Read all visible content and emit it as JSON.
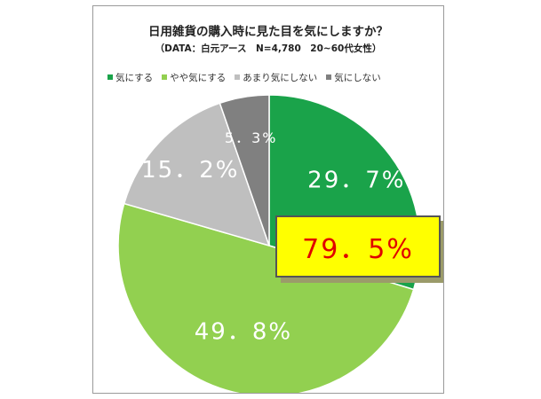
{
  "chart_data": {
    "type": "pie",
    "title": "日用雑貨の購入時に見た目を気にしますか？",
    "subtitle": "（DATA：白元アース　N=4,780　20~60代女性）",
    "categories": [
      "気にする",
      "やや気にする",
      "あまり気にしない",
      "気にしない"
    ],
    "values": [
      29.7,
      49.8,
      15.2,
      5.3
    ],
    "value_labels": [
      "29．7%",
      "49．8%",
      "15．2%",
      "5．3%"
    ],
    "colors": [
      "#1aa34a",
      "#92d050",
      "#bfbfbf",
      "#808080"
    ],
    "legend_position": "top",
    "start_angle": "12 o'clock, clockwise",
    "annotation": "79．5%"
  }
}
